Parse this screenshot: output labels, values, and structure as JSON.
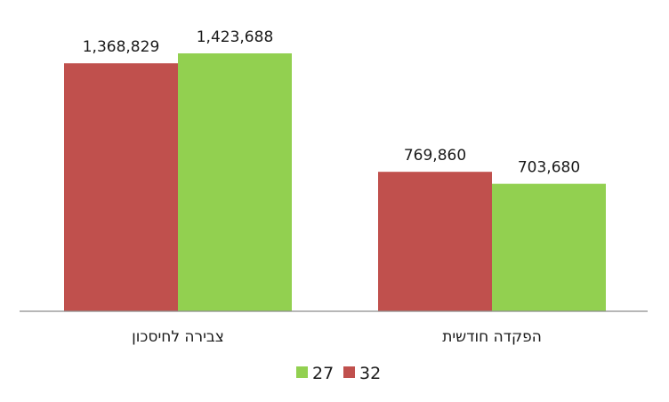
{
  "chart_data": {
    "type": "bar",
    "categories": [
      "צבירה לחיסכון",
      "הפקדה חודשית"
    ],
    "series": [
      {
        "name": "32",
        "color": "#c0504d",
        "values": [
          1368829,
          769860
        ],
        "labels": [
          "1,368,829",
          "769,860"
        ]
      },
      {
        "name": "27",
        "color": "#92d050",
        "values": [
          1423688,
          703680
        ],
        "labels": [
          "1,423,688",
          "703,680"
        ]
      }
    ],
    "ylim": [
      0,
      1600000
    ],
    "grid": false,
    "legend": "bottom-center",
    "title": "",
    "xlabel": "",
    "ylabel": ""
  }
}
